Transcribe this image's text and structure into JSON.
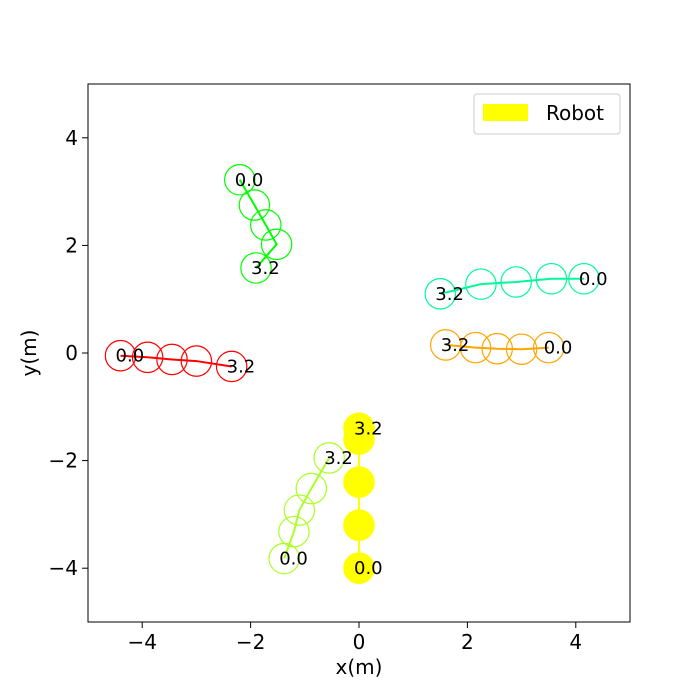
{
  "chart_data": {
    "type": "scatter",
    "xlabel": "x(m)",
    "ylabel": "y(m)",
    "xlim": [
      -5,
      5
    ],
    "ylim": [
      -5,
      5
    ],
    "xticks": [
      -4,
      -2,
      0,
      2,
      4
    ],
    "yticks": [
      -4,
      -2,
      0,
      2,
      4
    ],
    "xtick_labels": [
      "−4",
      "−2",
      "0",
      "2",
      "4"
    ],
    "ytick_labels": [
      "−4",
      "−2",
      "0",
      "2",
      "4"
    ],
    "grid": false,
    "legend": {
      "position": "top-right",
      "entries": [
        {
          "label": "Robot",
          "color": "#ffff00"
        }
      ]
    },
    "circle_radius": 0.28,
    "series": [
      {
        "name": "Robot",
        "color": "#ffff00",
        "filled": true,
        "points": [
          [
            0,
            -4.0
          ],
          [
            0,
            -3.2
          ],
          [
            0,
            -2.4
          ],
          [
            0,
            -1.6
          ],
          [
            0,
            -1.4
          ]
        ],
        "start_label": "0.0",
        "end_label": "3.2"
      },
      {
        "color": "#ff0000",
        "filled": false,
        "points": [
          [
            -4.4,
            -0.05
          ],
          [
            -3.9,
            -0.08
          ],
          [
            -3.45,
            -0.12
          ],
          [
            -3.0,
            -0.15
          ],
          [
            -2.35,
            -0.25
          ]
        ],
        "start_label": "0.0",
        "end_label": "3.2"
      },
      {
        "color": "#00ff00",
        "filled": false,
        "points": [
          [
            -2.2,
            3.22
          ],
          [
            -1.93,
            2.75
          ],
          [
            -1.72,
            2.38
          ],
          [
            -1.52,
            2.02
          ],
          [
            -1.9,
            1.58
          ]
        ],
        "start_label": "0.0",
        "end_label": "3.2"
      },
      {
        "color": "#00f99a",
        "filled": false,
        "points": [
          [
            4.15,
            1.38
          ],
          [
            3.55,
            1.38
          ],
          [
            2.9,
            1.32
          ],
          [
            2.25,
            1.28
          ],
          [
            1.5,
            1.1
          ]
        ],
        "start_label": "0.0",
        "end_label": "3.2"
      },
      {
        "color": "#ffa500",
        "filled": false,
        "points": [
          [
            3.5,
            0.1
          ],
          [
            3.0,
            0.07
          ],
          [
            2.55,
            0.08
          ],
          [
            2.15,
            0.1
          ],
          [
            1.6,
            0.15
          ]
        ],
        "start_label": "0.0",
        "end_label": "3.2"
      },
      {
        "color": "#aaff22",
        "filled": false,
        "points": [
          [
            -1.38,
            -3.82
          ],
          [
            -1.2,
            -3.32
          ],
          [
            -1.1,
            -2.92
          ],
          [
            -0.88,
            -2.52
          ],
          [
            -0.55,
            -1.95
          ]
        ],
        "start_label": "0.0",
        "end_label": "3.2"
      }
    ]
  }
}
